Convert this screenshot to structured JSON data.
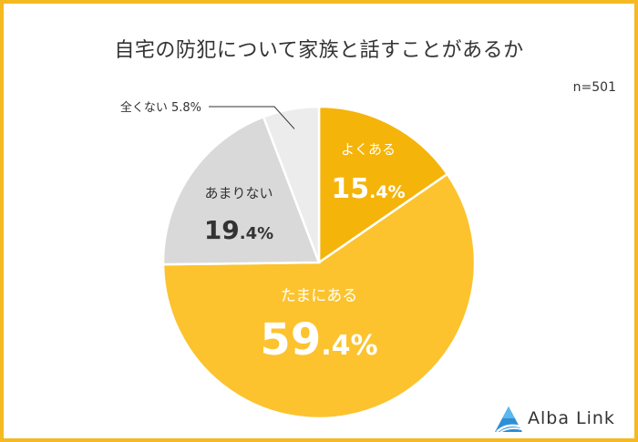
{
  "title": "自宅の防犯について家族と話すことがあるか",
  "sample": "n=501",
  "brand": "Alba Link",
  "chart_data": {
    "type": "pie",
    "title": "自宅の防犯について家族と話すことがあるか",
    "note": "n=501",
    "slices": [
      {
        "label": "よくある",
        "value": 15.4,
        "value_main": "15",
        "value_frac": ".4%",
        "color": "#f5b40a",
        "text_color": "#ffffff"
      },
      {
        "label": "たまにある",
        "value": 59.4,
        "value_main": "59",
        "value_frac": ".4%",
        "color": "#fcc32e",
        "text_color": "#ffffff"
      },
      {
        "label": "あまりない",
        "value": 19.4,
        "value_main": "19",
        "value_frac": ".4%",
        "color": "#d9d9d9",
        "text_color": "#333333"
      },
      {
        "label": "全くない",
        "value": 5.8,
        "value_text": "5.8%",
        "color": "#ececec",
        "text_color": "#333333"
      }
    ]
  }
}
